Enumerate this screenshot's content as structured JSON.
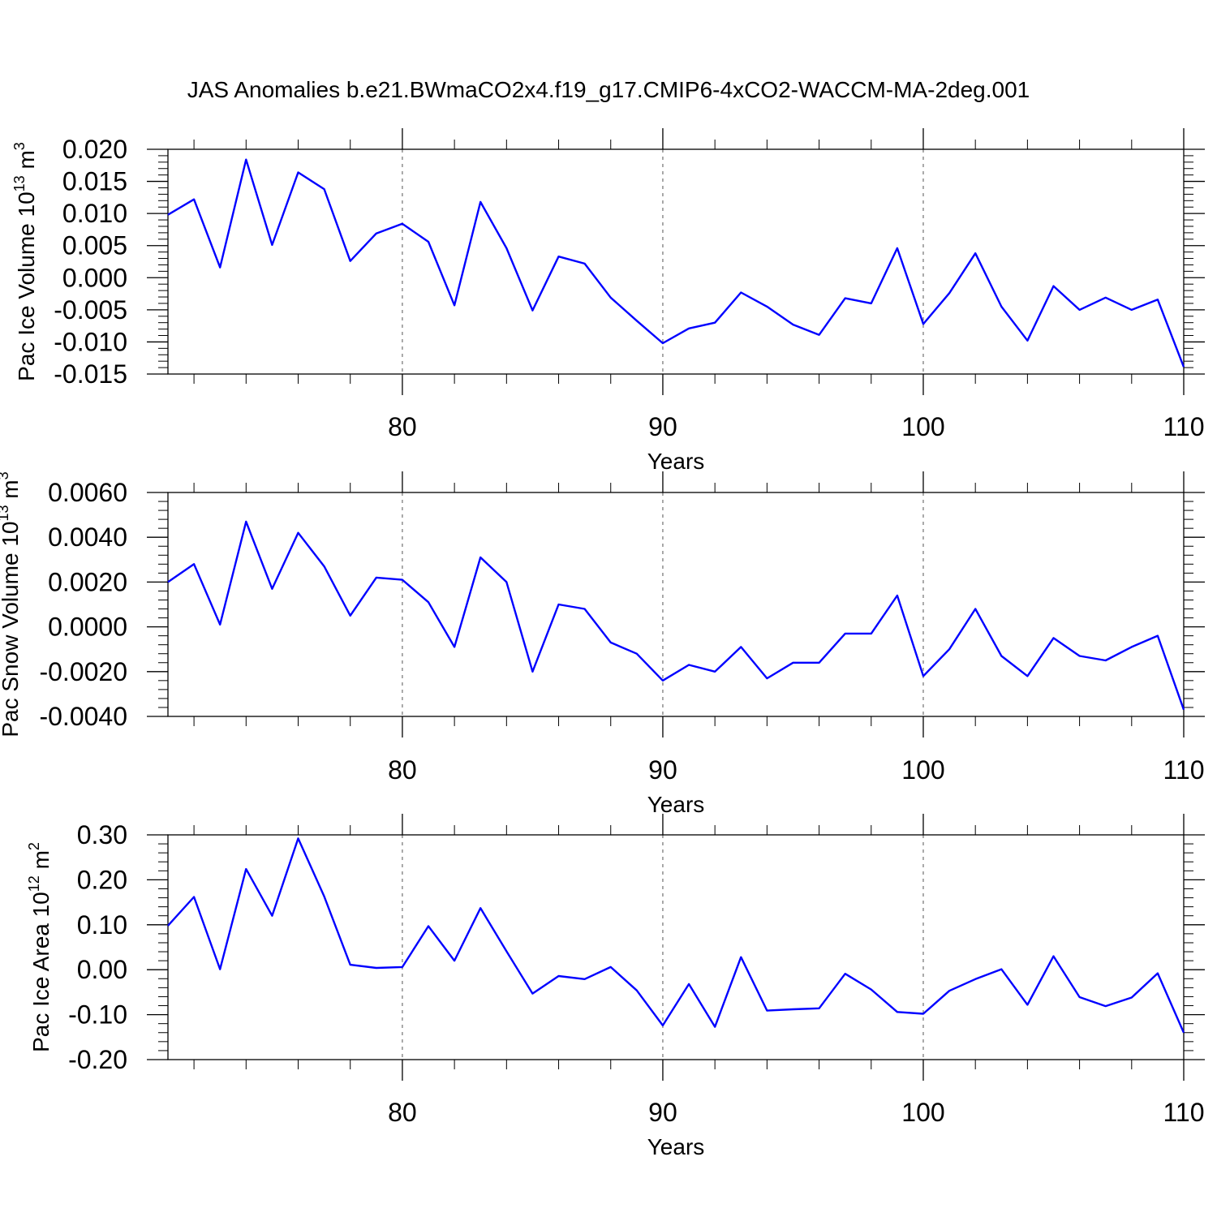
{
  "title": "JAS Anomalies b.e21.BWmaCO2x4.f19_g17.CMIP6-4xCO2-WACCM-MA-2deg.001",
  "colors": {
    "series": "#0000ff",
    "axis": "#000000",
    "grid": "#555555"
  },
  "chart_data": [
    {
      "type": "line",
      "title": "",
      "xlabel": "Years",
      "ylabel_main": "Pac Ice Volume 10",
      "ylabel_exp": "13",
      "ylabel_unit": " m",
      "ylabel_unit_exp": "3",
      "xlim": [
        71,
        110
      ],
      "ylim": [
        -0.015,
        0.02
      ],
      "x_ticks": [
        80,
        90,
        100,
        110
      ],
      "x_tick_labels": [
        "80",
        "90",
        "100",
        "110"
      ],
      "y_ticks": [
        -0.015,
        -0.01,
        -0.005,
        0.0,
        0.005,
        0.01,
        0.015,
        0.02
      ],
      "y_tick_labels": [
        "-0.015",
        "-0.010",
        "-0.005",
        "0.000",
        "0.005",
        "0.010",
        "0.015",
        "0.020"
      ],
      "grid": "dashed vertical at major x ticks",
      "x": [
        71,
        72,
        73,
        74,
        75,
        76,
        77,
        78,
        79,
        80,
        81,
        82,
        83,
        84,
        85,
        86,
        87,
        88,
        89,
        90,
        91,
        92,
        93,
        94,
        95,
        96,
        97,
        98,
        99,
        100,
        101,
        102,
        103,
        104,
        105,
        106,
        107,
        108,
        109,
        110
      ],
      "y": [
        0.0098,
        0.0122,
        0.0016,
        0.0184,
        0.0051,
        0.0164,
        0.0138,
        0.0026,
        0.0069,
        0.0084,
        0.0056,
        -0.0043,
        0.0118,
        0.0046,
        -0.0051,
        0.0033,
        0.0022,
        -0.0031,
        -0.0067,
        -0.0102,
        -0.0079,
        -0.007,
        -0.0023,
        -0.0045,
        -0.0073,
        -0.0089,
        -0.0032,
        -0.004,
        0.0046,
        -0.0072,
        -0.0024,
        0.0038,
        -0.0045,
        -0.0098,
        -0.0013,
        -0.005,
        -0.0031,
        -0.005,
        -0.0034,
        -0.0139
      ]
    },
    {
      "type": "line",
      "title": "",
      "xlabel": "Years",
      "ylabel_main": "Pac Snow Volume 10",
      "ylabel_exp": "13",
      "ylabel_unit": " m",
      "ylabel_unit_exp": "3",
      "xlim": [
        71,
        110
      ],
      "ylim": [
        -0.004,
        0.006
      ],
      "x_ticks": [
        80,
        90,
        100,
        110
      ],
      "x_tick_labels": [
        "80",
        "90",
        "100",
        "110"
      ],
      "y_ticks": [
        -0.004,
        -0.002,
        0.0,
        0.002,
        0.004,
        0.006
      ],
      "y_tick_labels": [
        "-0.0040",
        "-0.0020",
        "0.0000",
        "0.0020",
        "0.0040",
        "0.0060"
      ],
      "grid": "dashed vertical at major x ticks",
      "x": [
        71,
        72,
        73,
        74,
        75,
        76,
        77,
        78,
        79,
        80,
        81,
        82,
        83,
        84,
        85,
        86,
        87,
        88,
        89,
        90,
        91,
        92,
        93,
        94,
        95,
        96,
        97,
        98,
        99,
        100,
        101,
        102,
        103,
        104,
        105,
        106,
        107,
        108,
        109,
        110
      ],
      "y": [
        0.002,
        0.0028,
        0.0001,
        0.0047,
        0.0017,
        0.0042,
        0.0027,
        0.0005,
        0.0022,
        0.0021,
        0.0011,
        -0.0009,
        0.0031,
        0.002,
        -0.002,
        0.001,
        0.0008,
        -0.0007,
        -0.0012,
        -0.0024,
        -0.0017,
        -0.002,
        -0.0009,
        -0.0023,
        -0.0016,
        -0.0016,
        -0.0003,
        -0.0003,
        0.0014,
        -0.0022,
        -0.001,
        0.0008,
        -0.0013,
        -0.0022,
        -0.0005,
        -0.0013,
        -0.0015,
        -0.0009,
        -0.0004,
        -0.0037
      ]
    },
    {
      "type": "line",
      "title": "",
      "xlabel": "Years",
      "ylabel_main": "Pac Ice Area 10",
      "ylabel_exp": "12",
      "ylabel_unit": " m",
      "ylabel_unit_exp": "2",
      "xlim": [
        71,
        110
      ],
      "ylim": [
        -0.2,
        0.3
      ],
      "x_ticks": [
        80,
        90,
        100,
        110
      ],
      "x_tick_labels": [
        "80",
        "90",
        "100",
        "110"
      ],
      "y_ticks": [
        -0.2,
        -0.1,
        0.0,
        0.1,
        0.2,
        0.3
      ],
      "y_tick_labels": [
        "-0.20",
        "-0.10",
        "0.00",
        "0.10",
        "0.20",
        "0.30"
      ],
      "grid": "dashed vertical at major x ticks",
      "x": [
        71,
        72,
        73,
        74,
        75,
        76,
        77,
        78,
        79,
        80,
        81,
        82,
        83,
        84,
        85,
        86,
        87,
        88,
        89,
        90,
        91,
        92,
        93,
        94,
        95,
        96,
        97,
        98,
        99,
        100,
        101,
        102,
        103,
        104,
        105,
        106,
        107,
        108,
        109,
        110
      ],
      "y": [
        0.098,
        0.162,
        0.001,
        0.224,
        0.12,
        0.292,
        0.163,
        0.011,
        0.004,
        0.006,
        0.097,
        0.02,
        0.137,
        0.041,
        -0.053,
        -0.014,
        -0.021,
        0.006,
        -0.046,
        -0.124,
        -0.032,
        -0.127,
        0.028,
        -0.091,
        -0.088,
        -0.086,
        -0.009,
        -0.044,
        -0.094,
        -0.098,
        -0.047,
        -0.021,
        0.001,
        -0.078,
        0.03,
        -0.061,
        -0.081,
        -0.062,
        -0.008,
        -0.14
      ]
    }
  ]
}
